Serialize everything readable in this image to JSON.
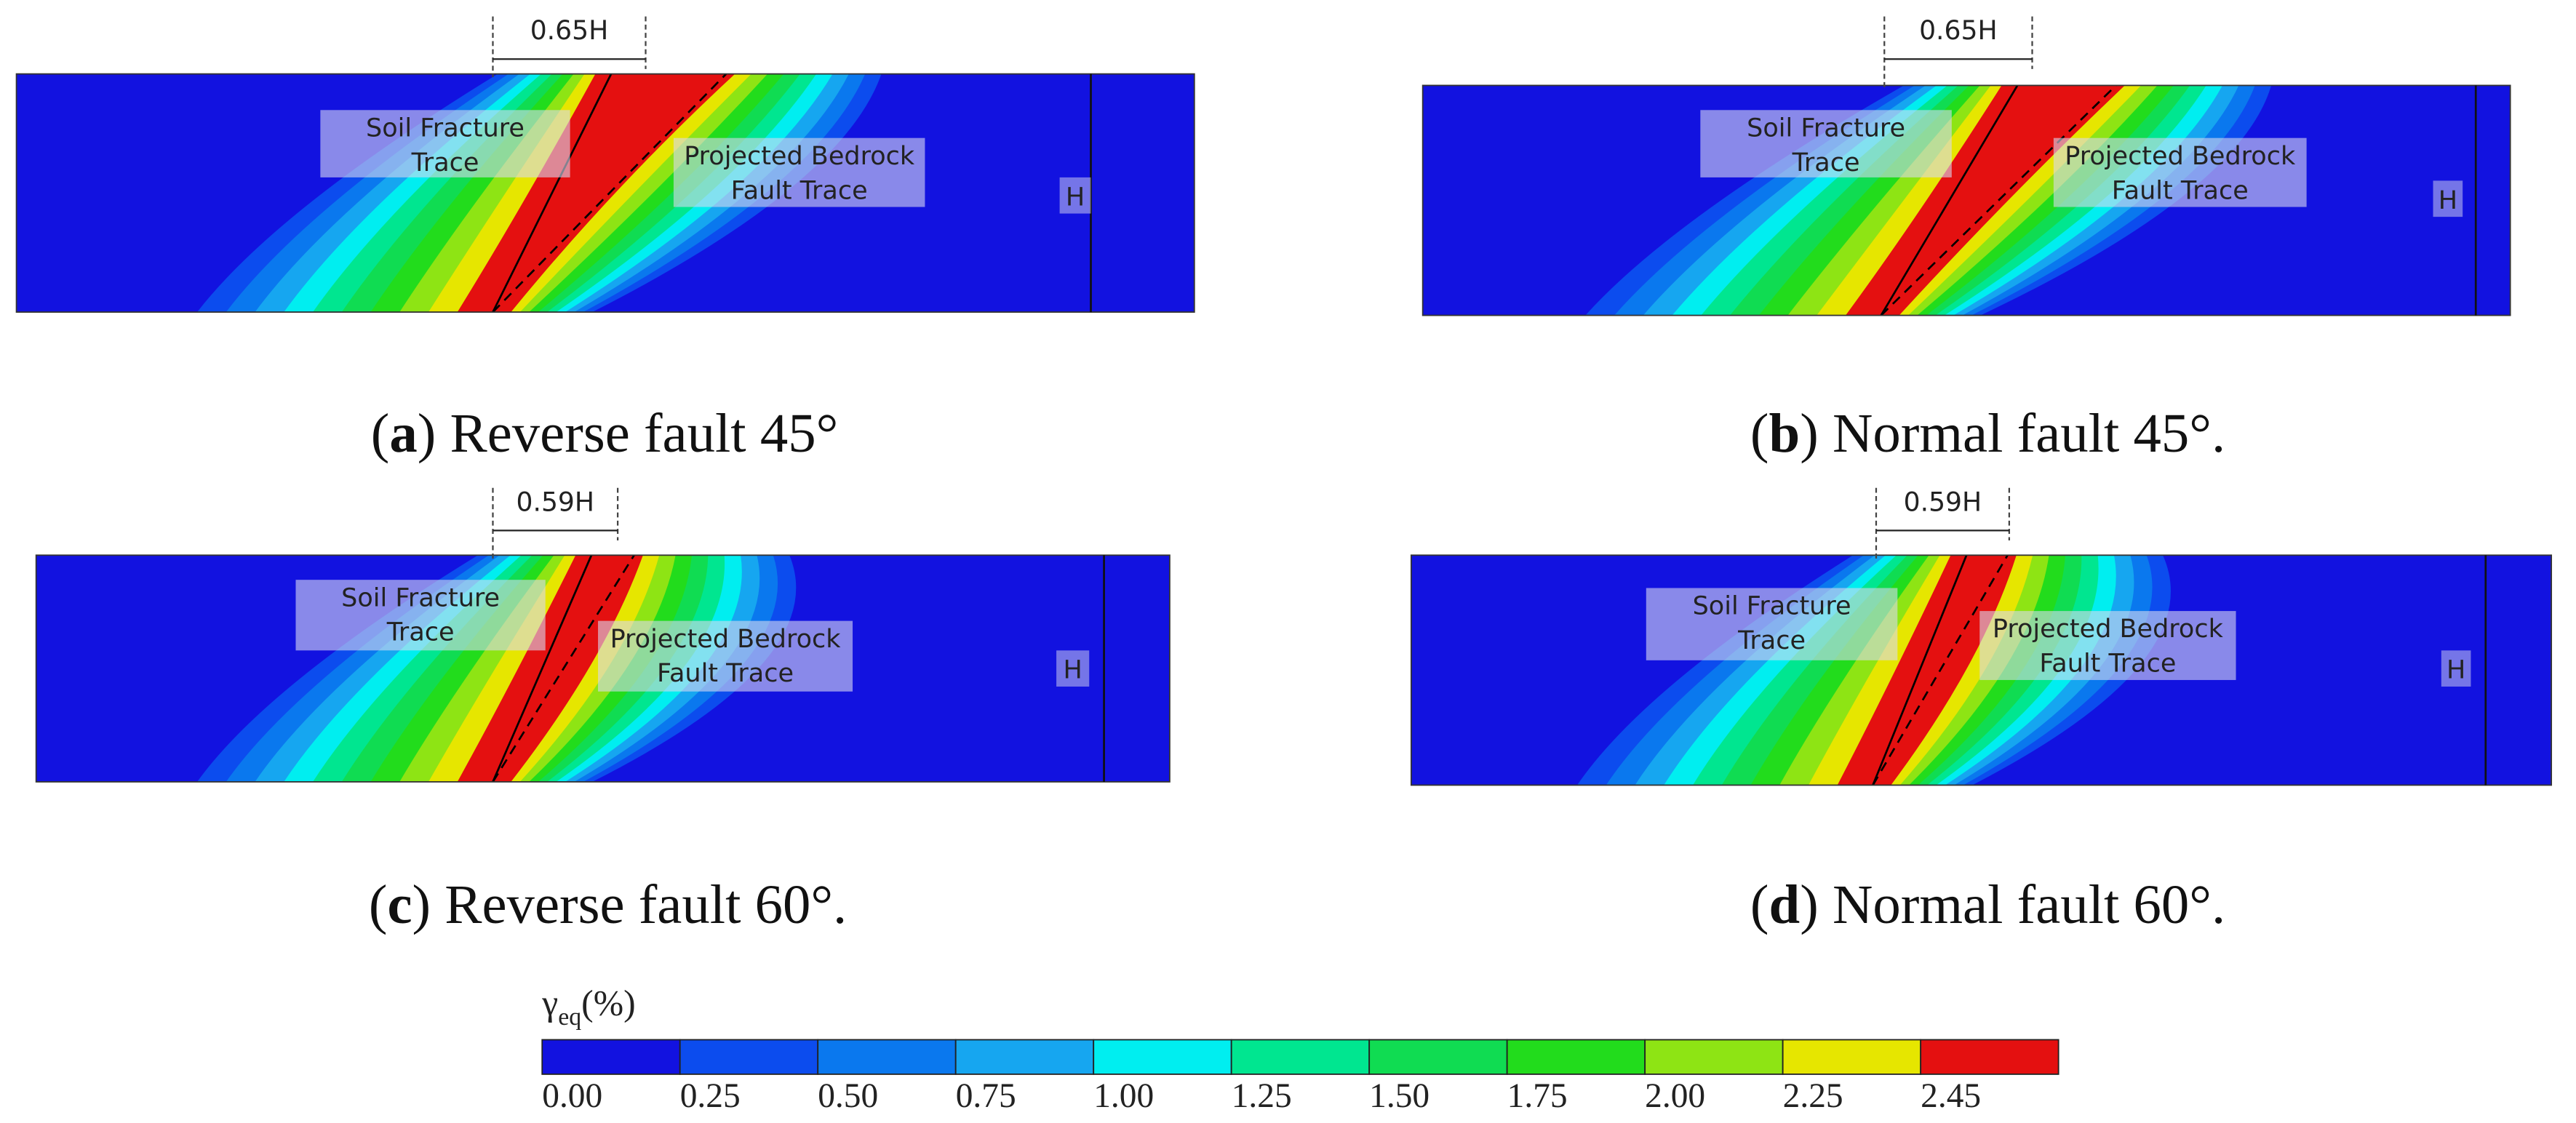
{
  "panels": [
    {
      "dimension": "0.65H",
      "soil_label": [
        "Soil Fracture",
        "Trace"
      ],
      "bedrock_label": [
        "Projected Bedrock",
        "Fault Trace"
      ],
      "height_label": "H",
      "caption": [
        "(",
        "a",
        ") Reverse fault 45°"
      ]
    },
    {
      "dimension": "0.65H",
      "soil_label": [
        "Soil Fracture",
        "Trace"
      ],
      "bedrock_label": [
        "Projected Bedrock",
        "Fault Trace"
      ],
      "height_label": "H",
      "caption": [
        "(",
        "b",
        ") Normal fault 45°."
      ]
    },
    {
      "dimension": "0.59H",
      "soil_label": [
        "Soil Fracture",
        "Trace"
      ],
      "bedrock_label": [
        "Projected Bedrock",
        "Fault Trace"
      ],
      "height_label": "H",
      "caption": [
        "(",
        "c",
        ") Reverse fault 60°."
      ]
    },
    {
      "dimension": "0.59H",
      "soil_label": [
        "Soil Fracture",
        "Trace"
      ],
      "bedrock_label": [
        "Projected Bedrock",
        "Fault Trace"
      ],
      "height_label": "H",
      "caption": [
        "(",
        "d",
        ") Normal fault 60°."
      ]
    }
  ],
  "colorbar": {
    "symbol": "γ",
    "subscript": "eq",
    "unit": "(%)",
    "colors": [
      "#1212e0",
      "#0c4cee",
      "#0a78ee",
      "#16a6f0",
      "#00eef0",
      "#00e690",
      "#10dc52",
      "#22dc1c",
      "#8ee414",
      "#e6e600",
      "#e41010"
    ],
    "labels": [
      "0.00",
      "0.25",
      "0.50",
      "0.75",
      "1.00",
      "1.25",
      "1.50",
      "1.75",
      "2.00",
      "2.25",
      "2.45"
    ]
  }
}
